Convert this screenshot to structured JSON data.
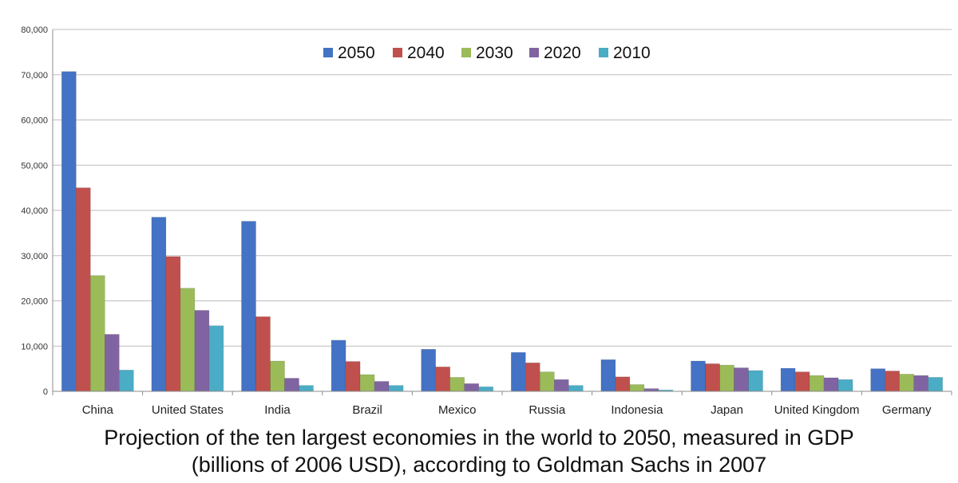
{
  "chart_data": {
    "type": "bar",
    "categories": [
      "China",
      "United States",
      "India",
      "Brazil",
      "Mexico",
      "Russia",
      "Indonesia",
      "Japan",
      "United Kingdom",
      "Germany"
    ],
    "series": [
      {
        "name": "2050",
        "color": "#4472C4",
        "values": [
          70700,
          38500,
          37600,
          11300,
          9300,
          8600,
          7000,
          6700,
          5100,
          5000
        ]
      },
      {
        "name": "2040",
        "color": "#C0504D",
        "values": [
          45000,
          29800,
          16500,
          6600,
          5400,
          6300,
          3200,
          6100,
          4300,
          4500
        ]
      },
      {
        "name": "2030",
        "color": "#9BBB59",
        "values": [
          25600,
          22800,
          6700,
          3700,
          3100,
          4300,
          1500,
          5800,
          3500,
          3800
        ]
      },
      {
        "name": "2020",
        "color": "#8064A2",
        "values": [
          12600,
          17900,
          2900,
          2200,
          1700,
          2600,
          600,
          5200,
          3000,
          3500
        ]
      },
      {
        "name": "2010",
        "color": "#4BACC6",
        "values": [
          4700,
          14500,
          1300,
          1300,
          1000,
          1300,
          300,
          4600,
          2600,
          3100
        ]
      }
    ],
    "ylim": [
      0,
      80000
    ],
    "yticks": [
      0,
      10000,
      20000,
      30000,
      40000,
      50000,
      60000,
      70000,
      80000
    ],
    "ytick_labels": [
      "0",
      "10,000",
      "20,000",
      "30,000",
      "40,000",
      "50,000",
      "60,000",
      "70,000",
      "80,000"
    ],
    "grid": true,
    "legend_position": "top-center"
  },
  "caption": {
    "line1": "Projection of the ten largest economies in the world to 2050, measured in GDP",
    "line2": "(billions of 2006 USD), according to Goldman Sachs in 2007"
  }
}
